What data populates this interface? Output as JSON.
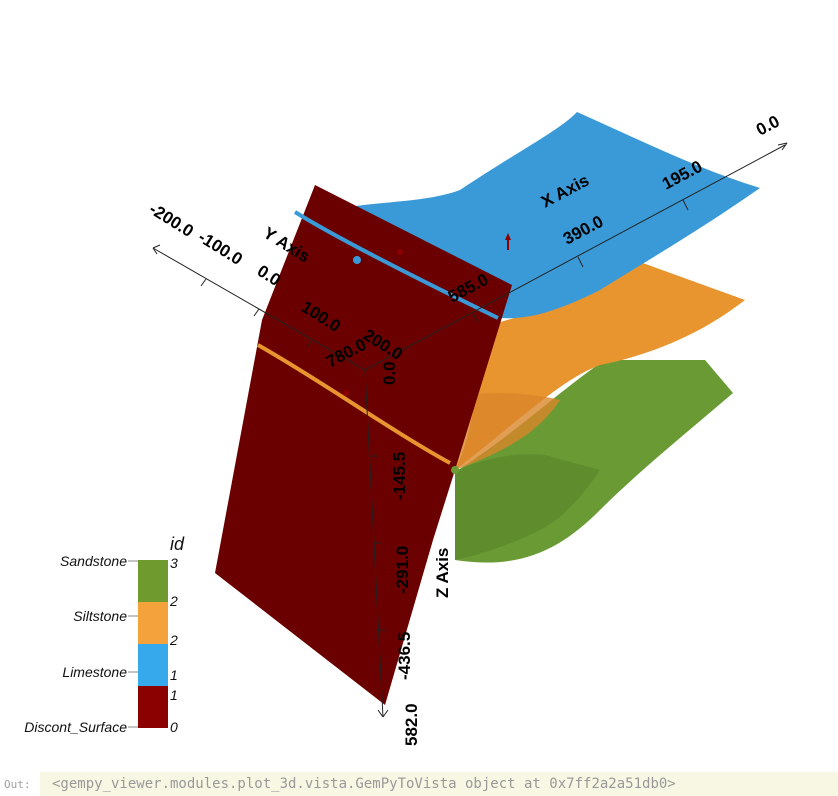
{
  "axes": {
    "x_label": "X Axis",
    "y_label": "Y Axis",
    "z_label": "Z Axis",
    "x_ticks": [
      "0.0",
      "195.0",
      "390.0",
      "585.0",
      "780.0"
    ],
    "y_ticks": [
      "-200.0",
      "-100.0",
      "0.0",
      "100.0",
      "200.0"
    ],
    "z_ticks": [
      "0.0",
      "-145.5",
      "-291.0",
      "-436.5",
      "582.0"
    ]
  },
  "legend": {
    "title": "id",
    "items": [
      {
        "label": "Sandstone",
        "color": "#6e9a2e"
      },
      {
        "label": "Siltstone",
        "color": "#f4a23c"
      },
      {
        "label": "Limestone",
        "color": "#36a9ec"
      },
      {
        "label": "Discont_Surface",
        "color": "#8b0000"
      }
    ],
    "ticks": [
      "3",
      "2",
      "2",
      "1",
      "1",
      "0"
    ]
  },
  "surfaces": [
    {
      "name": "Limestone",
      "color": "#3a9ad8"
    },
    {
      "name": "Siltstone",
      "color": "#e8952f"
    },
    {
      "name": "Sandstone",
      "color": "#6a9a34"
    },
    {
      "name": "Discont_Surface",
      "color": "#6b0000"
    }
  ],
  "output": {
    "prompt_label": "Out:",
    "text": "<gempy_viewer.modules.plot_3d.vista.GemPyToVista object at 0x7ff2a2a51db0>"
  }
}
